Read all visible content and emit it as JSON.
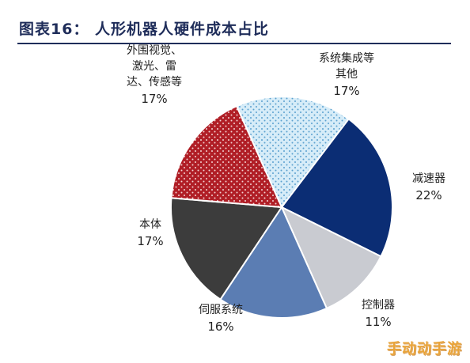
{
  "chart_data": {
    "type": "pie",
    "title": "图表16： 人形机器人硬件成本占比",
    "slices": [
      {
        "lines": [
          "系统集成等",
          "其他"
        ],
        "value": 17,
        "pct": "17%",
        "color": "#d6ecf8",
        "pattern": "dots"
      },
      {
        "lines": [
          "减速器"
        ],
        "value": 22,
        "pct": "22%",
        "color": "#0b2d74",
        "pattern": "none"
      },
      {
        "lines": [
          "控制器"
        ],
        "value": 11,
        "pct": "11%",
        "color": "#c9cbd1",
        "pattern": "none"
      },
      {
        "lines": [
          "伺服系统"
        ],
        "value": 16,
        "pct": "16%",
        "color": "#5b7db3",
        "pattern": "none"
      },
      {
        "lines": [
          "本体"
        ],
        "value": 17,
        "pct": "17%",
        "color": "#3c3c3c",
        "pattern": "none"
      },
      {
        "lines": [
          "外围视觉、",
          "激光、雷",
          "达、传感等"
        ],
        "value": 17,
        "pct": "17%",
        "color": "#b01e26",
        "pattern": "dots"
      }
    ],
    "legend": "none"
  },
  "watermark": "手动动手游"
}
